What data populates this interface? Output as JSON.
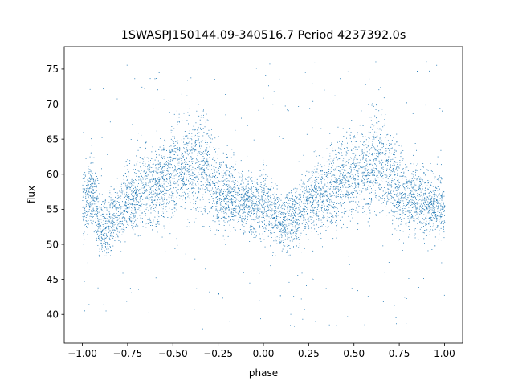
{
  "chart_data": {
    "type": "scatter",
    "title": "1SWASPJ150144.09-340516.7 Period 4237392.0s",
    "xlabel": "phase",
    "ylabel": "flux",
    "xlim": [
      -1.1,
      1.1
    ],
    "ylim": [
      35.9,
      78.2
    ],
    "xticks": [
      -1.0,
      -0.75,
      -0.5,
      -0.25,
      0.0,
      0.25,
      0.5,
      0.75,
      1.0
    ],
    "xtick_labels": [
      "−1.00",
      "−0.75",
      "−0.50",
      "−0.25",
      "0.00",
      "0.25",
      "0.50",
      "0.75",
      "1.00"
    ],
    "yticks": [
      40,
      45,
      50,
      55,
      60,
      65,
      70,
      75
    ],
    "ytick_labels": [
      "40",
      "45",
      "50",
      "55",
      "60",
      "65",
      "70",
      "75"
    ],
    "grid": false,
    "legend": "none",
    "point_color": "#1f77b4",
    "series": [
      {
        "x": [
          -1.0,
          -0.95,
          -0.9,
          -0.85,
          -0.8,
          -0.75,
          -0.7,
          -0.65,
          -0.6,
          -0.55,
          -0.5,
          -0.45,
          -0.4,
          -0.35,
          -0.3,
          -0.25,
          -0.2,
          -0.15,
          -0.1,
          -0.05,
          0.0,
          0.05,
          0.1,
          0.15,
          0.2,
          0.25,
          0.3,
          0.35,
          0.4,
          0.45,
          0.5,
          0.55,
          0.6,
          0.65,
          0.7,
          0.75,
          0.8,
          0.85,
          0.9,
          0.95,
          1.0
        ],
        "y": [
          55.5,
          58.0,
          52.0,
          53.0,
          54.5,
          56.5,
          57.0,
          58.5,
          58.0,
          59.5,
          60.5,
          61.5,
          61.0,
          62.0,
          60.0,
          57.5,
          57.0,
          57.0,
          56.0,
          55.5,
          55.5,
          55.0,
          53.0,
          54.0,
          54.5,
          56.5,
          57.0,
          57.5,
          58.5,
          59.5,
          60.0,
          61.0,
          61.5,
          62.0,
          60.5,
          58.0,
          57.0,
          56.5,
          56.0,
          55.5,
          55.5
        ],
        "spread": [
          4.5,
          5.0,
          4.0,
          4.0,
          4.0,
          4.5,
          5.0,
          5.5,
          5.5,
          5.5,
          6.0,
          6.0,
          6.5,
          6.5,
          6.0,
          5.0,
          4.5,
          4.0,
          4.0,
          4.0,
          4.0,
          4.0,
          3.5,
          4.0,
          4.0,
          4.5,
          5.0,
          5.0,
          5.5,
          5.5,
          6.0,
          6.0,
          6.5,
          6.5,
          6.0,
          5.5,
          4.5,
          4.5,
          4.0,
          4.0,
          4.0
        ]
      }
    ]
  }
}
